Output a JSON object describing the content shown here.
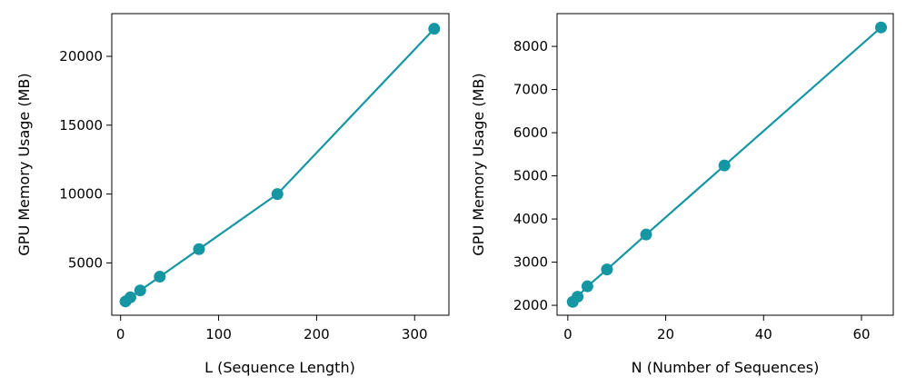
{
  "chart_data": [
    {
      "type": "line",
      "xlabel": "L (Sequence Length)",
      "ylabel": "GPU Memory Usage (MB)",
      "xlim": [
        -9,
        335
      ],
      "ylim": [
        1200,
        23100
      ],
      "xticks": [
        0,
        100,
        200,
        300
      ],
      "yticks": [
        5000,
        10000,
        15000,
        20000
      ],
      "grid": false,
      "color": "#1596a3",
      "series": [
        {
          "x": [
            5,
            10,
            20,
            40,
            80,
            160,
            320
          ],
          "y": [
            2200,
            2500,
            3000,
            4000,
            6000,
            10000,
            22000
          ]
        }
      ]
    },
    {
      "type": "line",
      "xlabel": "N (Number of Sequences)",
      "ylabel": "GPU Memory Usage (MB)",
      "xlim": [
        -2.2,
        66.5
      ],
      "ylim": [
        1770,
        8760
      ],
      "xticks": [
        0,
        20,
        40,
        60
      ],
      "yticks": [
        2000,
        3000,
        4000,
        5000,
        6000,
        7000,
        8000
      ],
      "grid": false,
      "color": "#1596a3",
      "series": [
        {
          "x": [
            1,
            2,
            4,
            8,
            16,
            32,
            64
          ],
          "y": [
            2080,
            2200,
            2440,
            2830,
            3640,
            5240,
            8440
          ]
        }
      ]
    }
  ]
}
